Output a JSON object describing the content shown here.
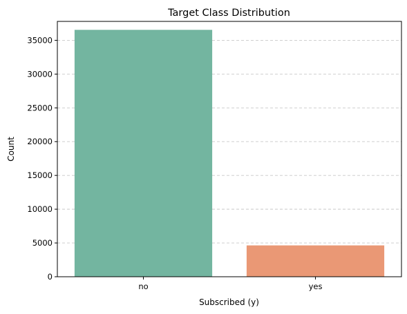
{
  "chart_data": {
    "type": "bar",
    "title": "Target Class Distribution",
    "xlabel": "Subscribed (y)",
    "ylabel": "Count",
    "categories": [
      "no",
      "yes"
    ],
    "values": [
      36548,
      4640
    ],
    "colors": [
      "#73b5a0",
      "#ea9875"
    ],
    "ylim": [
      0,
      37800
    ],
    "yticks": [
      0,
      5000,
      10000,
      15000,
      20000,
      25000,
      30000,
      35000
    ],
    "ytick_labels": [
      "0",
      "5000",
      "10000",
      "15000",
      "20000",
      "25000",
      "30000",
      "35000"
    ],
    "grid": "y-dashed",
    "legend": "none"
  }
}
